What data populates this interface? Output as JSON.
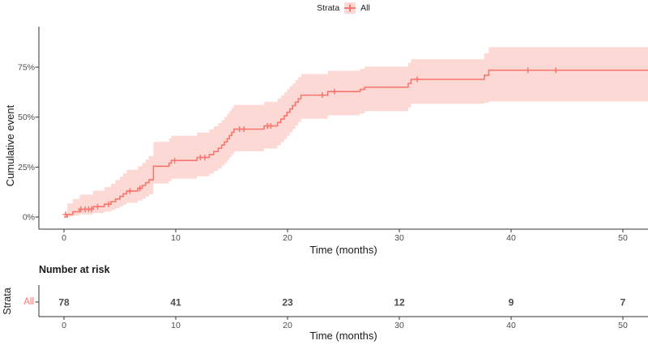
{
  "legend": {
    "title": "Strata",
    "items": [
      {
        "label": "All",
        "color": "#F8766D"
      }
    ]
  },
  "colors": {
    "line": "#F8766D",
    "ribbon": "rgba(248,118,109,0.28)",
    "axis": "#333333",
    "tick_text": "#4d4d4d",
    "title_text": "#1a1a1a"
  },
  "chart_data": {
    "type": "line",
    "subtype": "kaplan-meier-step-cumulative-event",
    "title": "",
    "xlabel": "Time (months)",
    "ylabel": "Cumulative event",
    "legend_position": "top",
    "grid": false,
    "xlim_months": [
      -2.2,
      52.3
    ],
    "ylim_pct": [
      0,
      94
    ],
    "xticks": [
      0,
      10,
      20,
      30,
      40,
      50
    ],
    "yticks": [
      {
        "value": 0,
        "label": "0%"
      },
      {
        "value": 25,
        "label": "25%"
      },
      {
        "value": 50,
        "label": "50%"
      },
      {
        "value": 75,
        "label": "75%"
      }
    ],
    "series": [
      {
        "name": "All",
        "color": "#F8766D",
        "points_format": [
          "time_months",
          "estimate_pct",
          "ci_lower_pct",
          "ci_upper_pct"
        ],
        "points": [
          [
            0,
            0,
            0,
            0
          ],
          [
            0.3,
            1.3,
            0.1,
            6.8
          ],
          [
            0.8,
            2.6,
            0.7,
            9
          ],
          [
            1.4,
            3.9,
            1.3,
            11.2
          ],
          [
            2.6,
            5.2,
            2,
            13.2
          ],
          [
            3.6,
            6.4,
            2.7,
            15
          ],
          [
            4.2,
            7.7,
            3.5,
            16.7
          ],
          [
            4.6,
            9,
            4.4,
            18.5
          ],
          [
            5,
            10.3,
            5.3,
            20.2
          ],
          [
            5.3,
            11.6,
            6.2,
            21.9
          ],
          [
            5.6,
            13,
            7.1,
            23.6
          ],
          [
            6.6,
            14.4,
            8.2,
            25.4
          ],
          [
            7,
            15.8,
            9.2,
            27.1
          ],
          [
            7.3,
            17.2,
            10.2,
            28.8
          ],
          [
            7.6,
            18.6,
            11.3,
            30.5
          ],
          [
            8,
            25.4,
            16.8,
            37.6
          ],
          [
            9.4,
            26.9,
            18,
            39.2
          ],
          [
            9.6,
            28.3,
            19.2,
            40.7
          ],
          [
            11.9,
            29.8,
            20.4,
            42.3
          ],
          [
            13,
            31.3,
            21.7,
            43.9
          ],
          [
            13.4,
            32.8,
            23,
            45.4
          ],
          [
            13.8,
            34.4,
            24.3,
            47
          ],
          [
            14.1,
            36,
            25.7,
            48.5
          ],
          [
            14.35,
            37.6,
            27.1,
            50.1
          ],
          [
            14.6,
            39.2,
            28.5,
            51.6
          ],
          [
            14.8,
            40.8,
            29.9,
            53.1
          ],
          [
            15,
            42.4,
            31.4,
            54.6
          ],
          [
            15.2,
            44,
            32.9,
            56.1
          ],
          [
            17.9,
            45.6,
            34.3,
            57.7
          ],
          [
            19.1,
            47.3,
            35.9,
            59.3
          ],
          [
            19.4,
            49,
            37.5,
            60.9
          ],
          [
            19.7,
            50.7,
            39.1,
            62.4
          ],
          [
            19.95,
            52.4,
            40.7,
            64
          ],
          [
            20.2,
            54.1,
            42.4,
            65.5
          ],
          [
            20.45,
            55.8,
            44.1,
            67
          ],
          [
            20.7,
            57.5,
            45.8,
            68.5
          ],
          [
            20.95,
            59.2,
            47.5,
            70
          ],
          [
            21.2,
            61,
            49.2,
            71.6
          ],
          [
            23.6,
            62.8,
            50.9,
            73.2
          ],
          [
            26.5,
            63.9,
            51.9,
            74.2
          ],
          [
            26.9,
            65,
            53,
            75.3
          ],
          [
            30.8,
            66.9,
            54.8,
            77.1
          ],
          [
            31.05,
            68.9,
            56.7,
            79
          ],
          [
            37.6,
            71,
            57.2,
            82
          ],
          [
            38,
            73.5,
            57.8,
            85
          ]
        ],
        "censor_marks": [
          [
            0.15,
            1.3
          ],
          [
            1.5,
            3.9
          ],
          [
            1.9,
            3.9
          ],
          [
            2.2,
            3.9
          ],
          [
            2.45,
            3.9
          ],
          [
            3,
            5.2
          ],
          [
            4,
            6.4
          ],
          [
            5.9,
            13
          ],
          [
            6.8,
            14.4
          ],
          [
            9.9,
            28.3
          ],
          [
            12.2,
            29.8
          ],
          [
            12.6,
            29.8
          ],
          [
            15.7,
            44
          ],
          [
            16.1,
            44
          ],
          [
            18.2,
            45.6
          ],
          [
            18.5,
            45.6
          ],
          [
            23.1,
            61
          ],
          [
            24.2,
            62.8
          ],
          [
            31.6,
            68.9
          ],
          [
            41.5,
            73.5
          ],
          [
            44,
            73.5
          ]
        ]
      }
    ],
    "risk_table": {
      "title": "Number at risk",
      "ylabel": "Strata",
      "xlabel": "Time (months)",
      "times": [
        0,
        10,
        20,
        30,
        40,
        50
      ],
      "rows": [
        {
          "label": "All",
          "values": [
            78,
            41,
            23,
            12,
            9,
            7
          ]
        }
      ]
    }
  }
}
